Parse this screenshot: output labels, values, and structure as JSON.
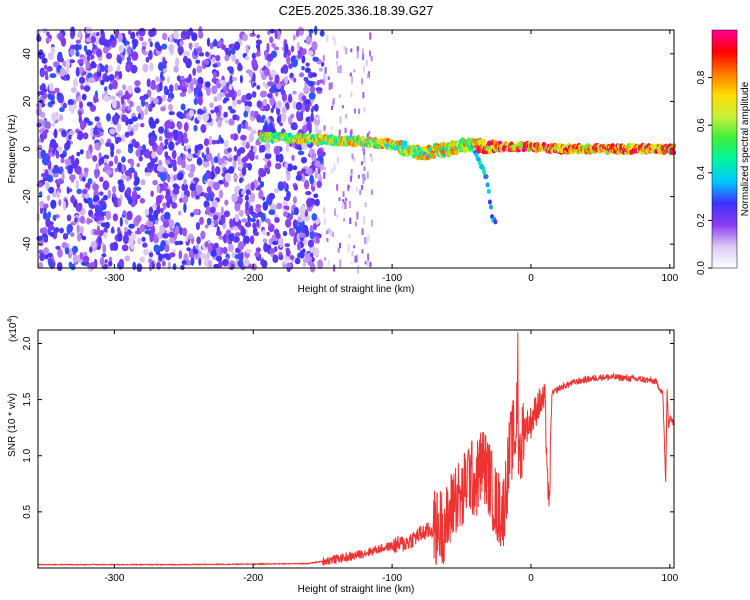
{
  "title": "C2E5.2025.336.18.39.G27",
  "chart_data": [
    {
      "type": "heatmap",
      "name": "spectrogram",
      "xlabel": "Height of straight line (km)",
      "ylabel": "Frequency (Hz)",
      "xlim": [
        -355,
        103
      ],
      "ylim": [
        -50,
        50
      ],
      "xticks": [
        -300,
        -200,
        -100,
        0,
        100
      ],
      "yticks": [
        -40,
        -20,
        0,
        20,
        40
      ],
      "colorbar": {
        "label": "Normalized spectral amplitude",
        "range": [
          0,
          1
        ],
        "ticks": [
          "0.0",
          "0.2",
          "0.4",
          "0.6",
          "0.8"
        ],
        "colormap": [
          "#ffffff",
          "#dcc8f5",
          "#8c3cf0",
          "#3c32ff",
          "#00c8ff",
          "#00f5a0",
          "#3cf03c",
          "#c8f03c",
          "#ffdc00",
          "#ff7800",
          "#ff0000",
          "#ff0096"
        ]
      },
      "features": {
        "noise_region_x": [
          -355,
          -150
        ],
        "sparse_noise_x": [
          -150,
          -115
        ],
        "signal_line": [
          {
            "x": -195,
            "f": 5
          },
          {
            "x": -150,
            "f": 4
          },
          {
            "x": -120,
            "f": 3
          },
          {
            "x": -100,
            "f": 2
          },
          {
            "x": -80,
            "f": -2
          },
          {
            "x": -60,
            "f": 0
          },
          {
            "x": -45,
            "f": 2
          },
          {
            "x": -30,
            "f": 1
          },
          {
            "x": -20,
            "f": 1
          },
          {
            "x": 0,
            "f": 1
          },
          {
            "x": 20,
            "f": 0
          },
          {
            "x": 60,
            "f": 0
          },
          {
            "x": 103,
            "f": 0
          }
        ],
        "branch": [
          {
            "x": -40,
            "f": -2
          },
          {
            "x": -35,
            "f": -8
          },
          {
            "x": -32,
            "f": -12
          },
          {
            "x": -28,
            "f": -28
          },
          {
            "x": -25,
            "f": -32
          }
        ]
      }
    },
    {
      "type": "line",
      "name": "snr",
      "xlabel": "Height of straight line (km)",
      "ylabel": "SNR (10 * v/v)",
      "multiplier": "(x10",
      "multiplier_exp": "4",
      "multiplier_close": ")",
      "xlim": [
        -355,
        103
      ],
      "ylim": [
        0,
        2.12
      ],
      "xticks": [
        -300,
        -200,
        -100,
        0,
        100
      ],
      "yticks": [
        0.5,
        1.0,
        1.5,
        2.0
      ],
      "ytick_labels": [
        "0.5",
        "1.0",
        "1.5",
        "2.0"
      ],
      "color": "#ee3333",
      "series": [
        {
          "x": [
            -355,
            -300,
            -250,
            -200,
            -160,
            -130,
            -115,
            -100,
            -90,
            -80,
            -70,
            -60,
            -55,
            -50,
            -45,
            -40,
            -35,
            -30,
            -25,
            -20,
            -15,
            -12,
            -10,
            -8,
            -5,
            0,
            5,
            10,
            13,
            15,
            20,
            30,
            40,
            50,
            60,
            70,
            80,
            90,
            95,
            97,
            98,
            99,
            100,
            103
          ],
          "y": [
            0.03,
            0.03,
            0.03,
            0.035,
            0.04,
            0.1,
            0.15,
            0.2,
            0.22,
            0.3,
            0.35,
            0.4,
            0.65,
            0.6,
            0.85,
            0.75,
            0.95,
            0.8,
            0.55,
            0.5,
            1.05,
            1.2,
            1.35,
            1.0,
            1.25,
            1.3,
            1.45,
            1.5,
            0.45,
            1.55,
            1.6,
            1.65,
            1.68,
            1.7,
            1.7,
            1.69,
            1.68,
            1.66,
            1.55,
            0.75,
            1.6,
            1.25,
            1.35,
            1.28
          ]
        }
      ]
    }
  ]
}
